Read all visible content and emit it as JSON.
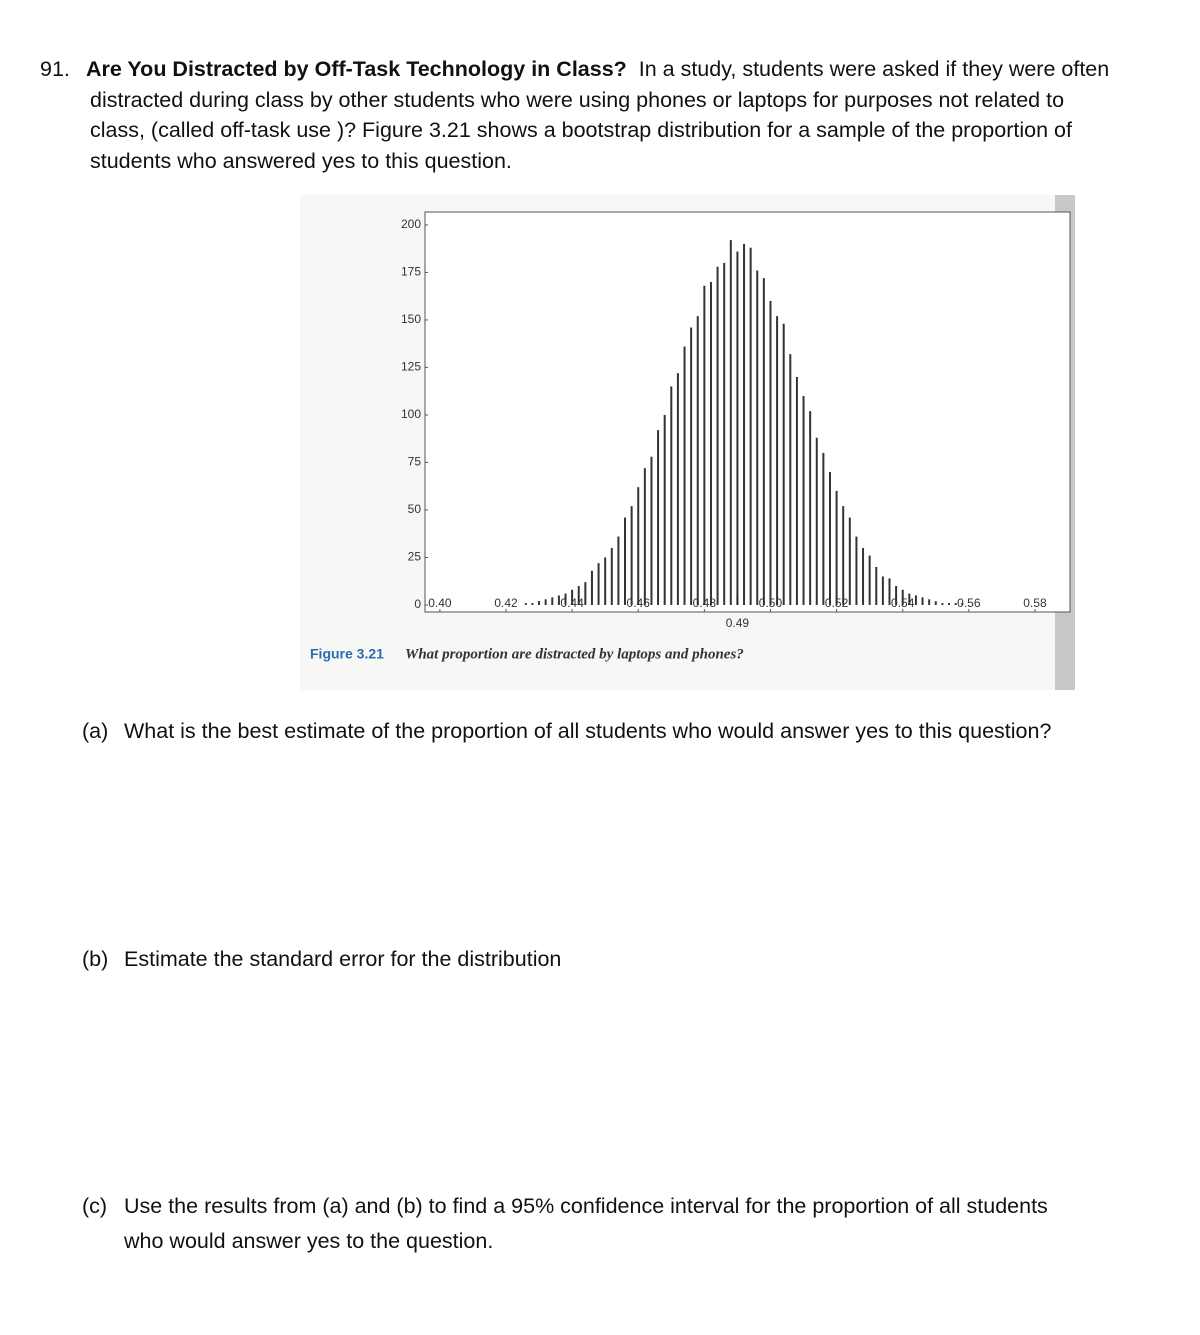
{
  "problem": {
    "number": "91.",
    "title": "Are You Distracted by Off-Task Technology in Class?",
    "text": "In a study, students were asked if they were often distracted during class by other students who were using phones or laptops for purposes not related to class, (called off-task use )? Figure 3.21 shows a bootstrap distribution for a sample of the proportion of students who answered yes to this question."
  },
  "figure": {
    "label": "Figure 3.21",
    "caption": "What proportion are distracted by laptops and phones?"
  },
  "chart_data": {
    "type": "bar",
    "x": [
      0.426,
      0.428,
      0.43,
      0.432,
      0.434,
      0.436,
      0.438,
      0.44,
      0.442,
      0.444,
      0.446,
      0.448,
      0.45,
      0.452,
      0.454,
      0.456,
      0.458,
      0.46,
      0.462,
      0.464,
      0.466,
      0.468,
      0.47,
      0.472,
      0.474,
      0.476,
      0.478,
      0.48,
      0.482,
      0.484,
      0.486,
      0.488,
      0.49,
      0.492,
      0.494,
      0.496,
      0.498,
      0.5,
      0.502,
      0.504,
      0.506,
      0.508,
      0.51,
      0.512,
      0.514,
      0.516,
      0.518,
      0.52,
      0.522,
      0.524,
      0.526,
      0.528,
      0.53,
      0.532,
      0.534,
      0.536,
      0.538,
      0.54,
      0.542,
      0.544,
      0.546,
      0.548,
      0.55,
      0.552,
      0.554,
      0.556,
      0.558
    ],
    "values": [
      1,
      1,
      2,
      3,
      4,
      5,
      6,
      8,
      10,
      12,
      18,
      22,
      25,
      30,
      36,
      46,
      52,
      62,
      72,
      78,
      92,
      100,
      115,
      122,
      136,
      146,
      152,
      168,
      170,
      178,
      180,
      192,
      186,
      190,
      188,
      176,
      172,
      160,
      152,
      148,
      132,
      120,
      110,
      102,
      88,
      80,
      70,
      60,
      52,
      46,
      36,
      30,
      26,
      20,
      15,
      14,
      10,
      8,
      6,
      5,
      4,
      3,
      2,
      1,
      1,
      1,
      1
    ],
    "color": "#333333",
    "xlim": [
      0.3955,
      0.5906
    ],
    "ylim": [
      -3.7,
      206.8
    ],
    "xticks": [
      {
        "value": 0.4,
        "label": "0.40"
      },
      {
        "value": 0.42,
        "label": "0.42"
      },
      {
        "value": 0.44,
        "label": "0.44"
      },
      {
        "value": 0.46,
        "label": "0.46"
      },
      {
        "value": 0.48,
        "label": "0.48"
      },
      {
        "value": 0.5,
        "label": "0.50"
      },
      {
        "value": 0.52,
        "label": "0.52"
      },
      {
        "value": 0.54,
        "label": "0.54"
      },
      {
        "value": 0.56,
        "label": "0.56"
      },
      {
        "value": 0.58,
        "label": "0.58"
      }
    ],
    "yticks": [
      0,
      25,
      50,
      75,
      100,
      125,
      150,
      175,
      200
    ],
    "annotations": [
      {
        "x": 0.49,
        "text": "0.49"
      }
    ]
  },
  "questions": [
    {
      "label": "(a)",
      "text": "What is the best estimate of the proportion of all students who would answer yes to this question?"
    },
    {
      "label": "(b)",
      "text": "Estimate the standard error for the distribution"
    },
    {
      "label": "(c)",
      "text": "Use the results from (a) and (b) to find a 95% confidence interval for the proportion of all students who would answer yes to the question."
    }
  ]
}
